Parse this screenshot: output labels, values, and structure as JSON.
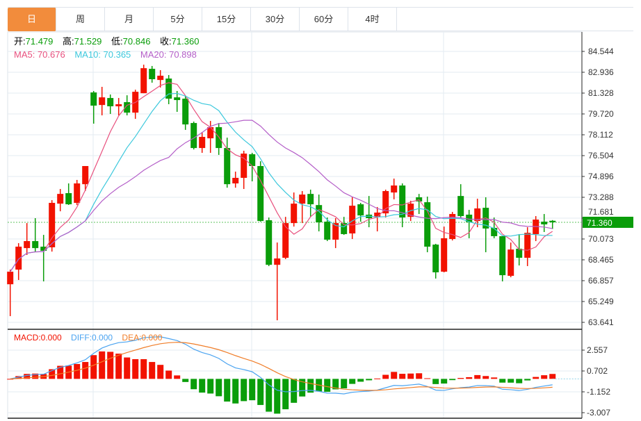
{
  "tabs": [
    "日",
    "周",
    "月",
    "5分",
    "15分",
    "30分",
    "60分",
    "4时"
  ],
  "active_tab": 0,
  "ohlc": {
    "open_label": "开:",
    "open": "71.479",
    "high_label": "高:",
    "high": "71.529",
    "low_label": "低:",
    "low": "70.846",
    "close_label": "收:",
    "close": "71.360"
  },
  "ma": {
    "ma5": "MA5: 70.676",
    "ma10": "MA10: 70.365",
    "ma20": "MA20: 70.898"
  },
  "macd": {
    "macd": "MACD:0.000",
    "diff": "DIFF:0.000",
    "dea": "DEA:0.000"
  },
  "colors": {
    "up": "#f21200",
    "down": "#0a9d0a",
    "ma5": "#e8507e",
    "ma10": "#3cc8dc",
    "ma20": "#b45ec8",
    "diff": "#4aa3f0",
    "dea": "#f07d28",
    "tab_active": "#f28c3c"
  },
  "chart_data": {
    "type": "candlestick",
    "price_ticks": [
      "84.544",
      "82.936",
      "81.328",
      "79.720",
      "78.112",
      "76.504",
      "74.896",
      "73.288",
      "71.681",
      "70.073",
      "68.465",
      "66.857",
      "65.249",
      "63.641"
    ],
    "price_range": [
      63.641,
      84.544
    ],
    "last_price": "71.360",
    "macd_ticks": [
      "2.557",
      "0.702",
      "-1.152",
      "-3.007"
    ],
    "macd_range": [
      -3.007,
      2.557
    ],
    "candles": [
      [
        66.58,
        67.71,
        64.12,
        67.55
      ],
      [
        67.71,
        69.75,
        66.91,
        69.48
      ],
      [
        69.37,
        71.3,
        68.84,
        69.91
      ],
      [
        69.91,
        71.68,
        69.1,
        69.37
      ],
      [
        69.48,
        70.39,
        66.8,
        69.16
      ],
      [
        69.43,
        73.07,
        69.1,
        72.86
      ],
      [
        72.8,
        73.93,
        72.21,
        73.55
      ],
      [
        73.61,
        74.36,
        72.7,
        72.75
      ],
      [
        72.86,
        74.63,
        72.69,
        74.36
      ],
      [
        74.3,
        75.7,
        73.77,
        75.7
      ],
      [
        81.38,
        81.49,
        78.97,
        80.36
      ],
      [
        80.41,
        81.81,
        79.61,
        81.0
      ],
      [
        80.95,
        81.22,
        79.72,
        80.31
      ],
      [
        80.31,
        80.95,
        79.61,
        80.47
      ],
      [
        80.63,
        81.16,
        79.61,
        79.82
      ],
      [
        79.82,
        81.59,
        79.34,
        81.43
      ],
      [
        81.32,
        83.52,
        81.32,
        83.25
      ],
      [
        83.2,
        83.42,
        82.13,
        82.4
      ],
      [
        82.34,
        83.1,
        81.76,
        82.67
      ],
      [
        82.45,
        82.72,
        80.47,
        80.9
      ],
      [
        81.0,
        81.49,
        79.88,
        80.79
      ],
      [
        80.9,
        81.11,
        78.49,
        78.91
      ],
      [
        79.02,
        79.13,
        76.98,
        77.09
      ],
      [
        77.09,
        78.32,
        76.72,
        77.95
      ],
      [
        77.84,
        79.18,
        76.72,
        78.7
      ],
      [
        78.7,
        79.02,
        76.56,
        77.09
      ],
      [
        77.09,
        77.89,
        74.03,
        74.3
      ],
      [
        74.36,
        75.27,
        74.03,
        74.79
      ],
      [
        74.79,
        76.88,
        73.93,
        76.66
      ],
      [
        76.61,
        76.72,
        74.52,
        75.7
      ],
      [
        75.7,
        76.07,
        71.41,
        71.46
      ],
      [
        71.52,
        71.73,
        67.98,
        68.08
      ],
      [
        68.08,
        69.8,
        63.8,
        68.57
      ],
      [
        68.62,
        71.78,
        68.52,
        71.3
      ],
      [
        71.3,
        73.66,
        71.03,
        72.8
      ],
      [
        72.8,
        73.77,
        71.3,
        73.5
      ],
      [
        73.55,
        73.88,
        71.78,
        72.75
      ],
      [
        72.69,
        73.5,
        70.66,
        71.36
      ],
      [
        71.41,
        71.73,
        69.91,
        70.02
      ],
      [
        70.02,
        71.68,
        69.37,
        71.3
      ],
      [
        71.3,
        71.78,
        70.39,
        70.45
      ],
      [
        70.5,
        73.29,
        70.07,
        72.64
      ],
      [
        72.75,
        72.86,
        71.41,
        71.89
      ],
      [
        71.95,
        73.39,
        70.98,
        71.68
      ],
      [
        71.78,
        72.54,
        70.66,
        72.11
      ],
      [
        72.05,
        73.88,
        71.73,
        73.77
      ],
      [
        73.66,
        74.73,
        73.13,
        74.2
      ],
      [
        74.2,
        74.36,
        70.98,
        71.73
      ],
      [
        71.78,
        73.02,
        71.46,
        72.8
      ],
      [
        73.29,
        73.55,
        72.0,
        72.97
      ],
      [
        72.91,
        73.34,
        69.05,
        69.48
      ],
      [
        69.64,
        69.7,
        67.02,
        67.5
      ],
      [
        67.55,
        71.03,
        67.5,
        70.13
      ],
      [
        70.07,
        72.16,
        69.96,
        72.0
      ],
      [
        73.39,
        74.3,
        71.73,
        71.84
      ],
      [
        71.95,
        72.32,
        70.13,
        71.36
      ],
      [
        71.46,
        73.18,
        70.98,
        72.43
      ],
      [
        72.48,
        73.29,
        69.05,
        70.88
      ],
      [
        70.93,
        71.73,
        70.13,
        70.29
      ],
      [
        70.29,
        70.29,
        66.8,
        67.28
      ],
      [
        67.23,
        69.8,
        67.12,
        69.26
      ],
      [
        69.32,
        70.45,
        68.03,
        68.62
      ],
      [
        68.62,
        70.98,
        67.98,
        70.55
      ],
      [
        70.45,
        71.84,
        69.91,
        71.57
      ],
      [
        71.41,
        72.0,
        70.61,
        71.2
      ],
      [
        71.479,
        71.529,
        70.846,
        71.36
      ]
    ]
  }
}
